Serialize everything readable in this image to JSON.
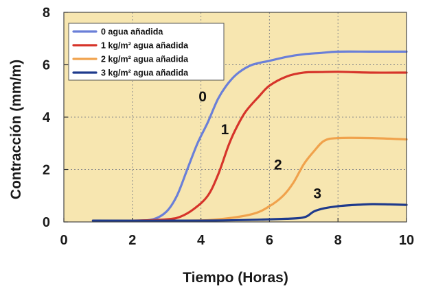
{
  "chart_data": {
    "type": "line",
    "xlabel": "Tiempo (Horas)",
    "ylabel": "Contracción (mm/m)",
    "xlim": [
      0,
      10
    ],
    "ylim": [
      0,
      8
    ],
    "x_ticks": [
      "0",
      "2",
      "4",
      "6",
      "8",
      "10"
    ],
    "y_ticks": [
      "0",
      "2",
      "4",
      "6",
      "8"
    ],
    "grid": true,
    "legend_position": "top-left",
    "colors": {
      "plot_background": "#f7e6b0",
      "grid": "#8a8a8a"
    },
    "series": [
      {
        "name": "0 agua añadida",
        "label": "0",
        "color": "#6a7fd8",
        "label_at": [
          4.05,
          4.6
        ],
        "x": [
          0.85,
          2.0,
          2.6,
          3.0,
          3.3,
          3.6,
          3.9,
          4.2,
          4.5,
          4.8,
          5.1,
          5.5,
          6.0,
          6.5,
          7.0,
          7.5,
          8.0,
          9.0,
          10.0
        ],
        "y": [
          0.05,
          0.05,
          0.1,
          0.4,
          1.0,
          2.0,
          3.0,
          3.8,
          4.7,
          5.3,
          5.7,
          6.0,
          6.15,
          6.3,
          6.4,
          6.45,
          6.5,
          6.5,
          6.5
        ]
      },
      {
        "name": "1 kg/m² agua añadida",
        "label": "1",
        "color": "#d6342a",
        "label_at": [
          4.7,
          3.35
        ],
        "x": [
          0.85,
          2.0,
          3.0,
          3.4,
          3.8,
          4.2,
          4.5,
          4.8,
          5.0,
          5.3,
          5.7,
          6.0,
          6.5,
          7.0,
          7.5,
          8.0,
          9.0,
          10.0
        ],
        "y": [
          0.05,
          0.05,
          0.1,
          0.2,
          0.5,
          1.0,
          1.8,
          2.9,
          3.5,
          4.2,
          4.8,
          5.2,
          5.55,
          5.7,
          5.72,
          5.73,
          5.7,
          5.7
        ]
      },
      {
        "name": "2 kg/m² agua añadida",
        "label": "2",
        "color": "#f0a24c",
        "label_at": [
          6.25,
          2.0
        ],
        "x": [
          0.85,
          3.5,
          4.5,
          5.5,
          6.0,
          6.4,
          6.7,
          7.0,
          7.3,
          7.6,
          8.0,
          9.0,
          10.0
        ],
        "y": [
          0.05,
          0.05,
          0.1,
          0.3,
          0.6,
          1.0,
          1.5,
          2.2,
          2.7,
          3.1,
          3.2,
          3.2,
          3.15
        ]
      },
      {
        "name": "3 kg/m² agua añadida",
        "label": "3",
        "color": "#1e3a8c",
        "label_at": [
          7.4,
          0.9
        ],
        "x": [
          0.85,
          4.0,
          5.5,
          6.5,
          6.9,
          7.1,
          7.3,
          7.6,
          8.0,
          8.5,
          9.0,
          9.5,
          10.0
        ],
        "y": [
          0.05,
          0.05,
          0.08,
          0.12,
          0.15,
          0.22,
          0.4,
          0.52,
          0.6,
          0.65,
          0.68,
          0.67,
          0.65
        ]
      }
    ]
  }
}
